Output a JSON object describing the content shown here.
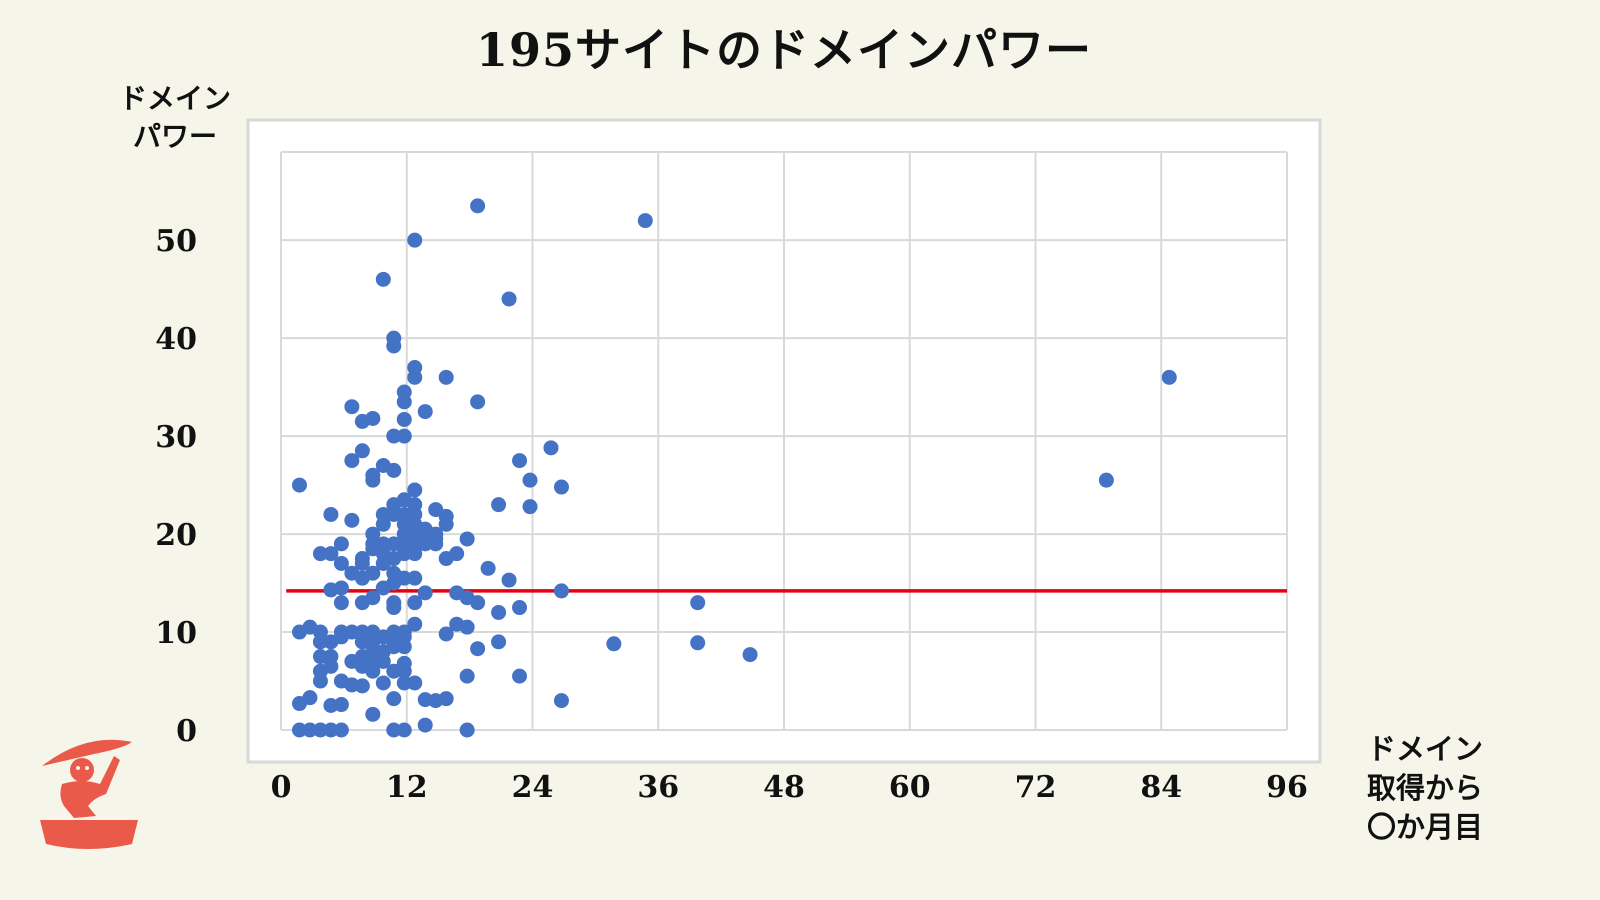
{
  "chart_data": {
    "type": "scatter",
    "title": "195サイトのドメインパワー",
    "ylabel": [
      "ドメイン",
      "パワー"
    ],
    "xlabel": [
      "ドメイン",
      "取得から",
      "〇か月目"
    ],
    "xlim": [
      0,
      96
    ],
    "ylim": [
      0,
      59
    ],
    "xticks": [
      "0",
      "12",
      "24",
      "36",
      "48",
      "60",
      "72",
      "84",
      "96"
    ],
    "yticks": [
      "0",
      "10",
      "20",
      "30",
      "40",
      "50"
    ],
    "grid": true,
    "reference_line": {
      "y": 14.2,
      "x_from": 0.5,
      "x_to": 96,
      "color": "#e60012"
    },
    "point_color": "#4472c4",
    "points": [
      [
        1,
        0
      ],
      [
        2,
        0
      ],
      [
        3,
        0
      ],
      [
        4,
        0
      ],
      [
        5,
        0
      ],
      [
        10,
        0
      ],
      [
        11,
        0
      ],
      [
        17,
        0
      ],
      [
        13,
        0.5
      ],
      [
        1,
        2.7
      ],
      [
        2,
        3.3
      ],
      [
        5,
        2.6
      ],
      [
        4,
        2.5
      ],
      [
        8,
        1.6
      ],
      [
        14,
        3
      ],
      [
        15,
        3.2
      ],
      [
        13,
        3.1
      ],
      [
        26,
        3
      ],
      [
        3,
        5
      ],
      [
        5,
        5
      ],
      [
        6,
        4.6
      ],
      [
        7,
        4.5
      ],
      [
        9,
        4.8
      ],
      [
        10,
        3.2
      ],
      [
        11,
        4.8
      ],
      [
        12,
        4.8
      ],
      [
        17,
        5.5
      ],
      [
        22,
        5.5
      ],
      [
        3,
        6
      ],
      [
        4,
        6.5
      ],
      [
        7,
        6.5
      ],
      [
        8,
        6
      ],
      [
        8,
        7
      ],
      [
        9,
        7
      ],
      [
        10,
        6
      ],
      [
        11,
        6
      ],
      [
        11,
        6.8
      ],
      [
        3,
        7.5
      ],
      [
        4,
        7.5
      ],
      [
        6,
        7
      ],
      [
        7,
        7.5
      ],
      [
        8,
        8
      ],
      [
        9,
        8
      ],
      [
        10,
        8.5
      ],
      [
        11,
        8.5
      ],
      [
        3,
        9
      ],
      [
        4,
        9
      ],
      [
        5,
        9.5
      ],
      [
        7,
        9
      ],
      [
        8,
        9
      ],
      [
        9,
        9.5
      ],
      [
        10,
        9
      ],
      [
        11,
        9.5
      ],
      [
        18,
        8.3
      ],
      [
        20,
        9
      ],
      [
        1,
        10
      ],
      [
        2,
        10.5
      ],
      [
        3,
        10
      ],
      [
        5,
        10
      ],
      [
        6,
        10
      ],
      [
        7,
        10
      ],
      [
        8,
        10
      ],
      [
        10,
        10
      ],
      [
        11,
        10
      ],
      [
        15,
        9.8
      ],
      [
        16,
        10.8
      ],
      [
        17,
        10.5
      ],
      [
        31,
        8.8
      ],
      [
        39,
        8.9
      ],
      [
        44,
        7.7
      ],
      [
        4,
        14.3
      ],
      [
        5,
        14.5
      ],
      [
        5,
        13
      ],
      [
        7,
        13
      ],
      [
        8,
        13.5
      ],
      [
        9,
        14.5
      ],
      [
        10,
        13
      ],
      [
        10,
        12.5
      ],
      [
        12,
        10.8
      ],
      [
        12,
        13
      ],
      [
        13,
        14
      ],
      [
        16,
        14
      ],
      [
        17,
        13.5
      ],
      [
        18,
        13
      ],
      [
        20,
        12
      ],
      [
        22,
        12.5
      ],
      [
        39,
        13
      ],
      [
        26,
        14.2
      ],
      [
        4,
        18
      ],
      [
        5,
        17
      ],
      [
        6,
        16
      ],
      [
        7,
        15.5
      ],
      [
        7,
        17
      ],
      [
        8,
        16
      ],
      [
        9,
        17
      ],
      [
        10,
        15
      ],
      [
        10,
        16
      ],
      [
        11,
        15.5
      ],
      [
        12,
        15.5
      ],
      [
        19,
        16.5
      ],
      [
        21,
        15.3
      ],
      [
        5,
        19
      ],
      [
        3,
        18
      ],
      [
        7,
        17.5
      ],
      [
        8,
        18.5
      ],
      [
        9,
        18
      ],
      [
        10,
        17.5
      ],
      [
        11,
        18
      ],
      [
        12,
        18
      ],
      [
        15,
        17.5
      ],
      [
        16,
        18
      ],
      [
        12,
        19
      ],
      [
        13,
        19
      ],
      [
        14,
        19
      ],
      [
        11,
        20
      ],
      [
        12,
        20
      ],
      [
        13,
        20.5
      ],
      [
        14,
        19.5
      ],
      [
        8,
        20
      ],
      [
        9,
        21
      ],
      [
        10,
        22
      ],
      [
        11,
        22
      ],
      [
        12,
        22
      ],
      [
        14,
        20
      ],
      [
        15,
        21
      ],
      [
        17,
        19.5
      ],
      [
        12,
        23
      ],
      [
        10,
        23
      ],
      [
        4,
        22
      ],
      [
        6,
        21.4
      ],
      [
        8,
        19
      ],
      [
        9,
        19
      ],
      [
        10,
        19
      ],
      [
        11,
        19
      ],
      [
        12,
        21
      ],
      [
        13,
        19.5
      ],
      [
        11,
        21
      ],
      [
        1,
        25
      ],
      [
        7,
        28.5
      ],
      [
        6,
        27.5
      ],
      [
        8,
        26
      ],
      [
        9,
        27
      ],
      [
        10,
        26.5
      ],
      [
        8,
        25.5
      ],
      [
        9,
        22
      ],
      [
        11,
        23.5
      ],
      [
        12,
        24.5
      ],
      [
        14,
        22.5
      ],
      [
        15,
        21.8
      ],
      [
        20,
        23
      ],
      [
        22,
        27.5
      ],
      [
        23,
        25.5
      ],
      [
        23,
        22.8
      ],
      [
        25,
        28.8
      ],
      [
        26,
        24.8
      ],
      [
        6,
        33
      ],
      [
        7,
        31.5
      ],
      [
        8,
        31.8
      ],
      [
        10,
        30
      ],
      [
        11,
        30
      ],
      [
        11,
        31.7
      ],
      [
        13,
        32.5
      ],
      [
        18,
        33.5
      ],
      [
        15,
        36
      ],
      [
        11,
        33.5
      ],
      [
        11,
        34.5
      ],
      [
        12,
        36
      ],
      [
        12,
        37
      ],
      [
        10,
        40
      ],
      [
        10,
        39.2
      ],
      [
        9,
        46
      ],
      [
        12,
        50
      ],
      [
        18,
        53.5
      ],
      [
        21,
        44
      ],
      [
        34,
        52
      ],
      [
        78,
        25.5
      ],
      [
        84,
        36
      ]
    ]
  },
  "logo": {
    "name": "mascot-logo",
    "color": "#ea5a4a"
  }
}
